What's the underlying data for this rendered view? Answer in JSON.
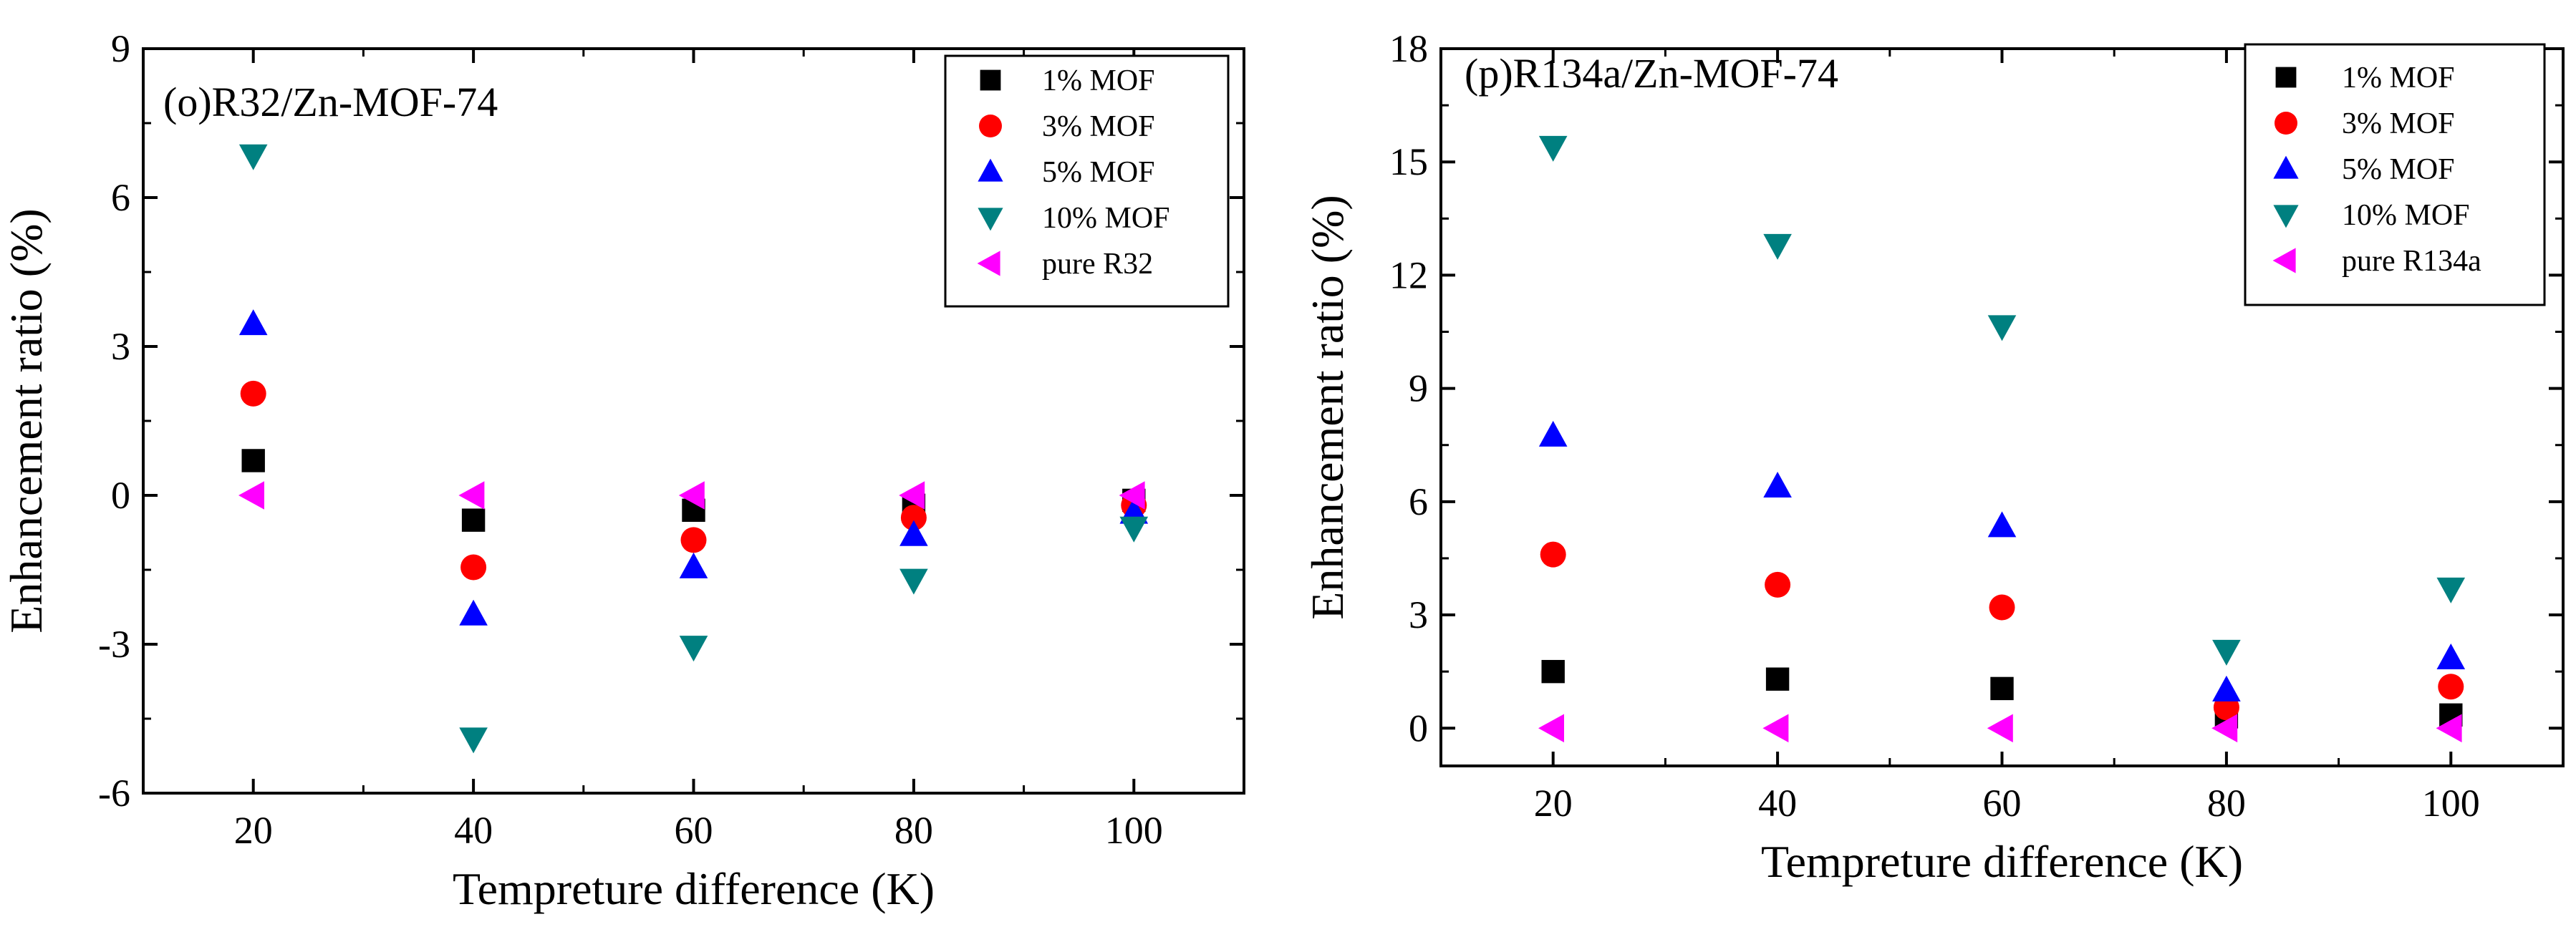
{
  "colors": {
    "1% MOF": "#000000",
    "3% MOF": "#ff0000",
    "5% MOF": "#0000ff",
    "10% MOF": "#008080",
    "pure": "#ff00ff"
  },
  "chart_data": [
    {
      "type": "scatter",
      "title": "(o)R32/Zn-MOF-74",
      "xlabel": "Tempreture difference (K)",
      "ylabel": "Enhancement ratio (%)",
      "xlim": [
        10,
        110
      ],
      "ylim": [
        -6,
        9
      ],
      "xticks": [
        20,
        40,
        60,
        80,
        100
      ],
      "xminor": [
        30,
        50,
        70,
        90
      ],
      "yticks": [
        -6,
        -3,
        0,
        3,
        6,
        9
      ],
      "x": [
        20,
        40,
        60,
        80,
        100
      ],
      "series": [
        {
          "name": "1% MOF",
          "marker": "square",
          "color": "#000000",
          "values": [
            0.7,
            -0.5,
            -0.3,
            -0.2,
            -0.1
          ]
        },
        {
          "name": "3% MOF",
          "marker": "circle",
          "color": "#ff0000",
          "values": [
            2.05,
            -1.45,
            -0.9,
            -0.45,
            -0.2
          ]
        },
        {
          "name": "5% MOF",
          "marker": "triangle-up",
          "color": "#0000ff",
          "values": [
            3.45,
            -2.4,
            -1.45,
            -0.8,
            -0.35
          ]
        },
        {
          "name": "10% MOF",
          "marker": "triangle-down",
          "color": "#008080",
          "values": [
            6.85,
            -4.9,
            -3.05,
            -1.7,
            -0.65
          ]
        },
        {
          "name": "pure R32",
          "marker": "triangle-left",
          "color": "#ff00ff",
          "values": [
            0,
            0,
            0,
            0,
            0
          ]
        }
      ]
    },
    {
      "type": "scatter",
      "title": "(p)R134a/Zn-MOF-74",
      "xlabel": "Tempreture difference (K)",
      "ylabel": "Enhancement ratio (%)",
      "xlim": [
        10,
        110
      ],
      "ylim": [
        -1,
        18
      ],
      "xticks": [
        20,
        40,
        60,
        80,
        100
      ],
      "xminor": [
        30,
        50,
        70,
        90
      ],
      "yticks": [
        0,
        3,
        6,
        9,
        12,
        15,
        18
      ],
      "x": [
        20,
        40,
        60,
        80,
        100
      ],
      "series": [
        {
          "name": "1% MOF",
          "marker": "square",
          "color": "#000000",
          "values": [
            1.5,
            1.3,
            1.05,
            0.3,
            0.35
          ]
        },
        {
          "name": "3% MOF",
          "marker": "circle",
          "color": "#ff0000",
          "values": [
            4.6,
            3.8,
            3.2,
            0.55,
            1.1
          ]
        },
        {
          "name": "5% MOF",
          "marker": "triangle-up",
          "color": "#0000ff",
          "values": [
            7.75,
            6.4,
            5.35,
            1.0,
            1.85
          ]
        },
        {
          "name": "10% MOF",
          "marker": "triangle-down",
          "color": "#008080",
          "values": [
            15.4,
            12.8,
            10.65,
            2.05,
            3.7
          ]
        },
        {
          "name": "pure R134a",
          "marker": "triangle-left",
          "color": "#ff00ff",
          "values": [
            0,
            0,
            0,
            0,
            0
          ]
        }
      ]
    }
  ]
}
